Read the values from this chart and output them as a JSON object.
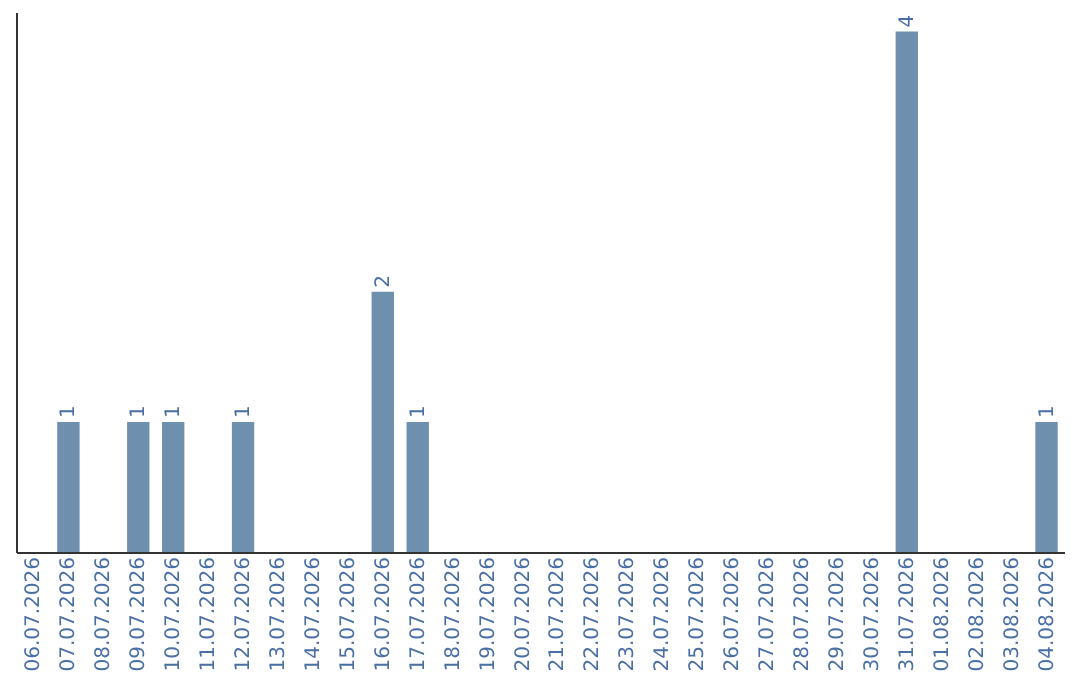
{
  "chart_data": {
    "type": "bar",
    "categories": [
      "06.07.2026",
      "07.07.2026",
      "08.07.2026",
      "09.07.2026",
      "10.07.2026",
      "11.07.2026",
      "12.07.2026",
      "13.07.2026",
      "14.07.2026",
      "15.07.2026",
      "16.07.2026",
      "17.07.2026",
      "18.07.2026",
      "19.07.2026",
      "20.07.2026",
      "21.07.2026",
      "22.07.2026",
      "23.07.2026",
      "24.07.2026",
      "25.07.2026",
      "26.07.2026",
      "27.07.2026",
      "28.07.2026",
      "29.07.2026",
      "30.07.2026",
      "31.07.2026",
      "01.08.2026",
      "02.08.2026",
      "03.08.2026",
      "04.08.2026"
    ],
    "values": [
      0,
      1,
      0,
      1,
      1,
      0,
      1,
      0,
      0,
      0,
      2,
      1,
      0,
      0,
      0,
      0,
      0,
      0,
      0,
      0,
      0,
      0,
      0,
      0,
      0,
      4,
      0,
      0,
      0,
      1
    ],
    "value_labels": [
      null,
      "1",
      null,
      "1",
      "1",
      null,
      "1",
      null,
      null,
      null,
      "2",
      "1",
      null,
      null,
      null,
      null,
      null,
      null,
      null,
      null,
      null,
      null,
      null,
      null,
      null,
      "4",
      null,
      null,
      null,
      "1"
    ],
    "color": "#6e8fae",
    "ylim": [
      0,
      4.15
    ],
    "tick_labels": "x",
    "grid": false
  }
}
